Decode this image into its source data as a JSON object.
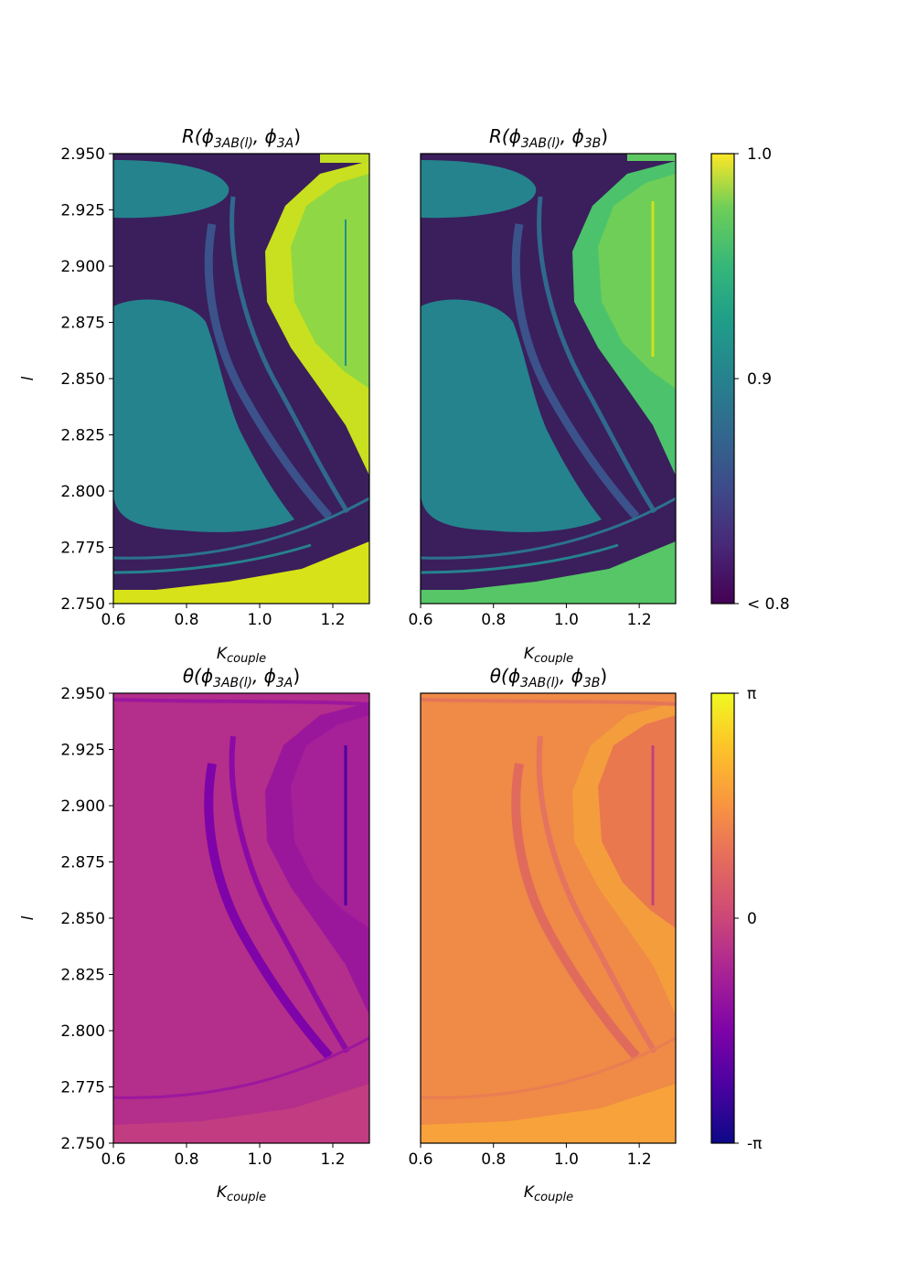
{
  "chart_data": [
    {
      "type": "heatmap",
      "title": "R(ϕ3AB(l), ϕ3A)",
      "title_parts": {
        "base": "R(ϕ",
        "s1": "3AB(l)",
        "mid": ", ϕ",
        "s2": "3A",
        "end": ")"
      },
      "xlabel": "Kcouple",
      "xlabel_parts": {
        "base": "K",
        "sub": "couple"
      },
      "ylabel": "l",
      "xlim": [
        0.6,
        1.3
      ],
      "ylim": [
        2.75,
        2.95
      ],
      "xticks": [
        "0.6",
        "0.8",
        "1.0",
        "1.2"
      ],
      "yticks": [
        "2.750",
        "2.775",
        "2.800",
        "2.825",
        "2.850",
        "2.875",
        "2.900",
        "2.925",
        "2.950"
      ],
      "colormap": "viridis",
      "colorbar": {
        "range": [
          0.8,
          1.0
        ],
        "tick_values": [
          0.8,
          0.9,
          1.0
        ],
        "tick_labels": [
          "< 0.8",
          "0.9",
          "1.0"
        ]
      }
    },
    {
      "type": "heatmap",
      "title": "R(ϕ3AB(l), ϕ3B)",
      "title_parts": {
        "base": "R(ϕ",
        "s1": "3AB(l)",
        "mid": ", ϕ",
        "s2": "3B",
        "end": ")"
      },
      "xlabel": "Kcouple",
      "xlabel_parts": {
        "base": "K",
        "sub": "couple"
      },
      "xlim": [
        0.6,
        1.3
      ],
      "ylim": [
        2.75,
        2.95
      ],
      "xticks": [
        "0.6",
        "0.8",
        "1.0",
        "1.2"
      ],
      "colormap": "viridis"
    },
    {
      "type": "heatmap",
      "title": "θ(ϕ3AB(l), ϕ3A)",
      "title_parts": {
        "base": "θ(ϕ",
        "s1": "3AB(l)",
        "mid": ", ϕ",
        "s2": "3A",
        "end": ")"
      },
      "xlabel": "Kcouple",
      "xlabel_parts": {
        "base": "K",
        "sub": "couple"
      },
      "ylabel": "l",
      "xlim": [
        0.6,
        1.3
      ],
      "ylim": [
        2.75,
        2.95
      ],
      "xticks": [
        "0.6",
        "0.8",
        "1.0",
        "1.2"
      ],
      "yticks": [
        "2.750",
        "2.775",
        "2.800",
        "2.825",
        "2.850",
        "2.875",
        "2.900",
        "2.925",
        "2.950"
      ],
      "colormap": "plasma",
      "colorbar": {
        "range": [
          -3.14159,
          3.14159
        ],
        "tick_values": [
          -3.14159,
          0,
          3.14159
        ],
        "tick_labels": [
          "-π",
          "0",
          "π"
        ]
      }
    },
    {
      "type": "heatmap",
      "title": "θ(ϕ3AB(l), ϕ3B)",
      "title_parts": {
        "base": "θ(ϕ",
        "s1": "3AB(l)",
        "mid": ", ϕ",
        "s2": "3B",
        "end": ")"
      },
      "xlabel": "Kcouple",
      "xlabel_parts": {
        "base": "K",
        "sub": "couple"
      },
      "xlim": [
        0.6,
        1.3
      ],
      "ylim": [
        2.75,
        2.95
      ],
      "xticks": [
        "0.6",
        "0.8",
        "1.0",
        "1.2"
      ],
      "colormap": "plasma"
    }
  ],
  "colors": {
    "viridis_dark": "#440154",
    "viridis_teal": "#25838e",
    "viridis_green": "#5ec962",
    "viridis_yellow": "#fde725",
    "plasma_dark": "#0d0887",
    "plasma_magenta": "#b02a8f",
    "plasma_orange": "#f0883b",
    "plasma_yellow": "#f0f921"
  }
}
